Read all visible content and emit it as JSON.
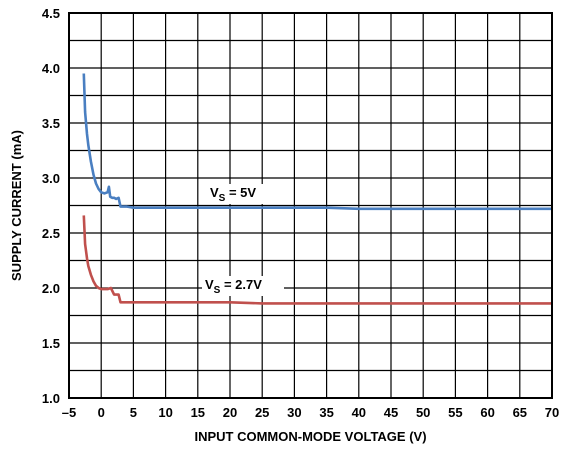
{
  "chart_data": {
    "type": "line",
    "xlabel": "INPUT COMMON-MODE VOLTAGE (V)",
    "ylabel": "SUPPLY CURRENT (mA)",
    "xlim": [
      -5,
      70
    ],
    "ylim": [
      1.0,
      4.5
    ],
    "xticks": [
      -5,
      0,
      5,
      10,
      15,
      20,
      25,
      30,
      35,
      40,
      45,
      50,
      55,
      60,
      65,
      70
    ],
    "xtick_labels": [
      "–5",
      "0",
      "5",
      "10",
      "15",
      "20",
      "25",
      "30",
      "35",
      "40",
      "45",
      "50",
      "55",
      "60",
      "65",
      "70"
    ],
    "yticks": [
      1.0,
      1.5,
      2.0,
      2.5,
      3.0,
      3.5,
      4.0,
      4.5
    ],
    "ytick_labels": [
      "1.0",
      "1.5",
      "2.0",
      "2.5",
      "3.0",
      "3.5",
      "4.0",
      "4.5"
    ],
    "grid": true,
    "series": [
      {
        "name": "V_S = 5V",
        "label_main": "V",
        "label_sub": "S",
        "label_rest": " = 5V",
        "color": "#4a7fc1",
        "x": [
          -2.7,
          -2.5,
          -2.2,
          -2.0,
          -1.6,
          -1.2,
          -0.8,
          -0.4,
          0.0,
          0.5,
          1.0,
          1.2,
          1.4,
          1.7,
          2.0,
          2.3,
          2.7,
          3.0,
          3.2,
          4.0,
          5.0,
          6.0,
          8.0,
          10.0,
          15.0,
          20.0,
          25.0,
          30.0,
          35.0,
          40.0,
          45.0,
          50.0,
          55.0,
          60.0,
          65.0,
          70.0
        ],
        "y": [
          3.95,
          3.6,
          3.4,
          3.3,
          3.15,
          3.03,
          2.95,
          2.9,
          2.87,
          2.86,
          2.87,
          2.92,
          2.83,
          2.82,
          2.82,
          2.81,
          2.82,
          2.74,
          2.74,
          2.74,
          2.73,
          2.73,
          2.73,
          2.73,
          2.73,
          2.73,
          2.73,
          2.73,
          2.73,
          2.72,
          2.72,
          2.72,
          2.72,
          2.72,
          2.72,
          2.72
        ]
      },
      {
        "name": "V_S = 2.7V",
        "label_main": "V",
        "label_sub": "S",
        "label_rest": " = 2.7V",
        "color": "#c0504d",
        "x": [
          -2.7,
          -2.5,
          -2.2,
          -2.0,
          -1.6,
          -1.2,
          -0.8,
          -0.4,
          0.0,
          0.5,
          1.0,
          1.5,
          2.0,
          2.3,
          2.7,
          3.0,
          3.2,
          4.0,
          5.0,
          6.0,
          8.0,
          10.0,
          15.0,
          20.0,
          25.0,
          30.0,
          35.0,
          40.0,
          45.0,
          50.0,
          55.0,
          60.0,
          65.0,
          70.0
        ],
        "y": [
          2.66,
          2.4,
          2.27,
          2.2,
          2.12,
          2.06,
          2.02,
          2.0,
          1.99,
          1.99,
          1.99,
          2.0,
          1.94,
          1.94,
          1.94,
          1.87,
          1.87,
          1.87,
          1.87,
          1.87,
          1.87,
          1.87,
          1.87,
          1.87,
          1.86,
          1.86,
          1.86,
          1.86,
          1.86,
          1.86,
          1.86,
          1.86,
          1.86,
          1.86
        ]
      }
    ]
  }
}
